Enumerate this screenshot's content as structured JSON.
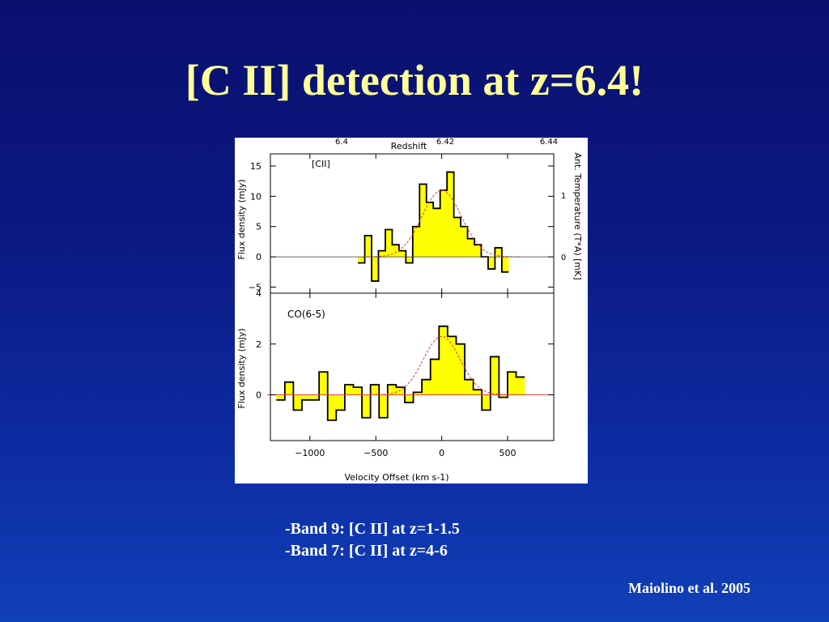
{
  "slide": {
    "title": "[C II] detection at z=6.4!",
    "bullets": [
      "-Band 9: [C II] at z=1-1.5",
      "-Band 7: [C II] at z=4-6"
    ],
    "citation": "Maiolino et al. 2005"
  },
  "colors": {
    "fill": "#ffff00",
    "fit": "#e04040",
    "axis": "#000000"
  },
  "chart_data": [
    {
      "type": "bar",
      "panel": "top",
      "label": "[CII]",
      "ylabel": "Flux density (mJy)",
      "xlabel": "Velocity Offset (km s-1)",
      "top_axis_label": "Redshift",
      "top_ticks": [
        "6.4",
        "6.42",
        "6.44"
      ],
      "right_axis_label": "Ant. Temperature (T*A) [mK]",
      "right_ticks": [
        "1",
        "0"
      ],
      "ylim": [
        -6,
        17
      ],
      "xlim": [
        -1300,
        850
      ],
      "yticks": [
        15,
        10,
        5,
        0,
        -5
      ],
      "bin_width": 52,
      "x": [
        -610,
        -558,
        -506,
        -454,
        -402,
        -350,
        -298,
        -246,
        -194,
        -142,
        -90,
        -38,
        14,
        66,
        118,
        170,
        222,
        274,
        326,
        378,
        430,
        482
      ],
      "values": [
        -1,
        3.5,
        -4,
        1,
        4.5,
        2,
        1,
        -1,
        5,
        12,
        9,
        8,
        11,
        14,
        6.5,
        5,
        3,
        2,
        0,
        -2,
        1.5,
        -2.5
      ],
      "fit": {
        "amplitude": 11,
        "center": 0,
        "sigma": 150
      }
    },
    {
      "type": "bar",
      "panel": "bottom",
      "label": "CO(6-5)",
      "ylabel": "Flux density (mJy)",
      "xlabel": "Velocity Offset (km s-1)",
      "xticks": [
        "-1000",
        "-500",
        "0",
        "500"
      ],
      "ylim": [
        -1.8,
        4
      ],
      "xlim": [
        -1300,
        850
      ],
      "yticks": [
        4,
        2,
        0
      ],
      "bin_width": 65,
      "x": [
        -1223,
        -1158,
        -1093,
        -1028,
        -963,
        -898,
        -833,
        -768,
        -703,
        -638,
        -573,
        -508,
        -443,
        -378,
        -313,
        -248,
        -183,
        -118,
        -53,
        12,
        77,
        142,
        207,
        272,
        337,
        402,
        467,
        532,
        597
      ],
      "values": [
        -0.2,
        0.5,
        -0.6,
        -0.2,
        -0.2,
        0.9,
        -1,
        -0.6,
        0.4,
        0.3,
        -0.9,
        0.4,
        -0.9,
        0.4,
        0.3,
        -0.3,
        0.1,
        0.6,
        1.4,
        2.7,
        2.3,
        2,
        0.6,
        0.2,
        -0.6,
        1.5,
        -0.1,
        0.9,
        0.7
      ],
      "fit": {
        "amplitude": 2.3,
        "center": 0,
        "sigma": 140
      }
    }
  ]
}
